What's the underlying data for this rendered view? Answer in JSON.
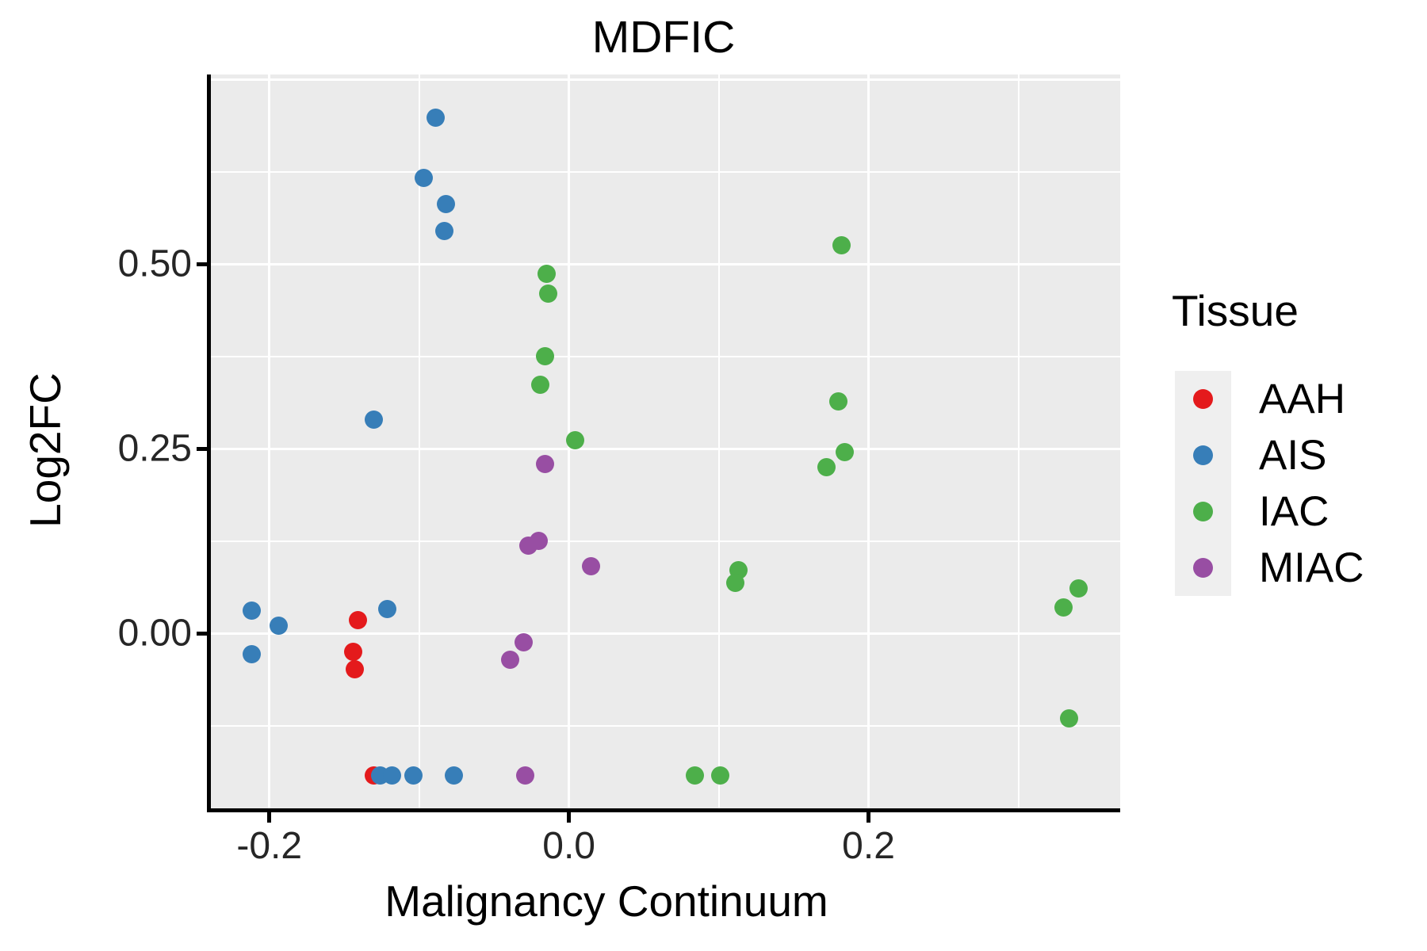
{
  "title": "MDFIC",
  "axes": {
    "x_label": "Malignancy Continuum",
    "y_label": "Log2FC"
  },
  "legend": {
    "title": "Tissue",
    "position": "right",
    "entries": [
      "AAH",
      "AIS",
      "IAC",
      "MIAC"
    ]
  },
  "colors": {
    "panel_background": "#EBEBEB",
    "gridline": "#FFFFFF",
    "axis_line": "#000000",
    "AAH": "#E41A1C",
    "AIS": "#377EB8",
    "IAC": "#4DAF4A",
    "MIAC": "#984EA3"
  },
  "chart_data": {
    "type": "scatter",
    "title": "MDFIC",
    "xlabel": "Malignancy Continuum",
    "ylabel": "Log2FC",
    "xlim": [
      -0.239,
      0.368
    ],
    "ylim": [
      -0.237,
      0.757
    ],
    "grid": true,
    "legend_position": "right",
    "x_ticks": [
      {
        "value": -0.2,
        "label": "-0.2"
      },
      {
        "value": 0.0,
        "label": "0.0"
      },
      {
        "value": 0.2,
        "label": "0.2"
      }
    ],
    "y_ticks": [
      {
        "value": 0.0,
        "label": "0.00"
      },
      {
        "value": 0.25,
        "label": "0.25"
      },
      {
        "value": 0.5,
        "label": "0.50"
      }
    ],
    "x_major_gridlines": [
      -0.2,
      0.0,
      0.2
    ],
    "y_major_gridlines": [
      0.0,
      0.25,
      0.5,
      0.75
    ],
    "x_minor_gridlines": [
      -0.1,
      0.1,
      0.3
    ],
    "y_minor_gridlines": [
      -0.125,
      0.125,
      0.375,
      0.625
    ],
    "series": [
      {
        "name": "AAH",
        "color": "#E41A1C",
        "points": [
          [
            -0.141,
            0.018
          ],
          [
            -0.144,
            -0.025
          ],
          [
            -0.143,
            -0.049
          ],
          [
            -0.13,
            -0.192
          ]
        ]
      },
      {
        "name": "AIS",
        "color": "#377EB8",
        "points": [
          [
            -0.089,
            0.698
          ],
          [
            -0.097,
            0.617
          ],
          [
            -0.082,
            0.582
          ],
          [
            -0.083,
            0.545
          ],
          [
            -0.13,
            0.289
          ],
          [
            -0.212,
            0.031
          ],
          [
            -0.194,
            0.01
          ],
          [
            -0.121,
            0.033
          ],
          [
            -0.212,
            -0.028
          ],
          [
            -0.126,
            -0.192
          ],
          [
            -0.118,
            -0.192
          ],
          [
            -0.104,
            -0.192
          ],
          [
            -0.077,
            -0.192
          ]
        ]
      },
      {
        "name": "IAC",
        "color": "#4DAF4A",
        "points": [
          [
            -0.015,
            0.487
          ],
          [
            -0.014,
            0.46
          ],
          [
            -0.016,
            0.375
          ],
          [
            -0.019,
            0.337
          ],
          [
            0.004,
            0.262
          ],
          [
            0.182,
            0.526
          ],
          [
            0.18,
            0.314
          ],
          [
            0.184,
            0.246
          ],
          [
            0.172,
            0.225
          ],
          [
            0.113,
            0.086
          ],
          [
            0.111,
            0.068
          ],
          [
            0.34,
            0.061
          ],
          [
            0.33,
            0.035
          ],
          [
            0.334,
            -0.115
          ],
          [
            0.084,
            -0.192
          ],
          [
            0.101,
            -0.192
          ]
        ]
      },
      {
        "name": "MIAC",
        "color": "#984EA3",
        "points": [
          [
            -0.016,
            0.229
          ],
          [
            -0.027,
            0.119
          ],
          [
            -0.02,
            0.125
          ],
          [
            0.015,
            0.091
          ],
          [
            -0.03,
            -0.012
          ],
          [
            -0.039,
            -0.036
          ],
          [
            -0.029,
            -0.192
          ]
        ]
      }
    ]
  }
}
